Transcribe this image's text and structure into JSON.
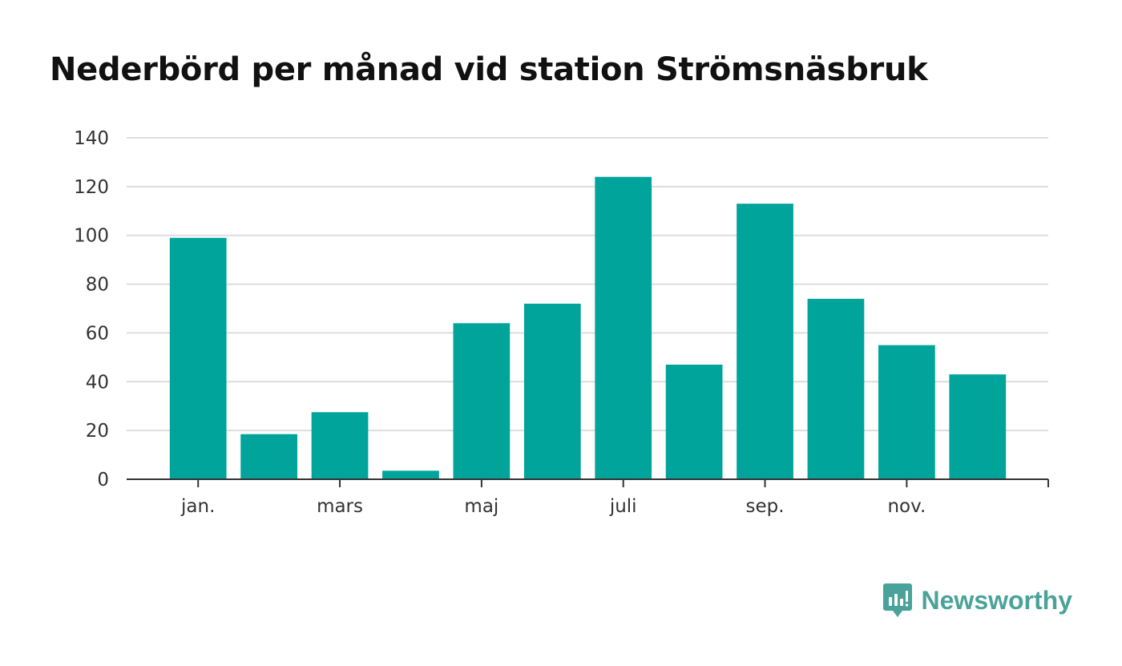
{
  "title": "Nederbörd per månad vid station Strömsnäsbruk",
  "brand": {
    "name": "Newsworthy",
    "icon": "newsworthy-logo-icon"
  },
  "colors": {
    "bar": "#00a49a",
    "grid": "#dddddd",
    "axis": "#333333",
    "brand": "#4aa39a"
  },
  "chart_data": {
    "type": "bar",
    "title": "Nederbörd per månad vid station Strömsnäsbruk",
    "xlabel": "",
    "ylabel": "",
    "x_tick_labels": [
      {
        "index": 0,
        "label": "jan."
      },
      {
        "index": 2,
        "label": "mars"
      },
      {
        "index": 4,
        "label": "maj"
      },
      {
        "index": 6,
        "label": "juli"
      },
      {
        "index": 8,
        "label": "sep."
      },
      {
        "index": 10,
        "label": "nov."
      }
    ],
    "values": [
      99,
      18.5,
      27.5,
      3.5,
      64,
      72,
      124,
      47,
      113,
      74,
      55,
      43
    ],
    "y_ticks": [
      "0",
      "20",
      "40",
      "60",
      "80",
      "100",
      "120",
      "140"
    ],
    "ylim": [
      0,
      140
    ],
    "grid": true,
    "legend": "none"
  }
}
